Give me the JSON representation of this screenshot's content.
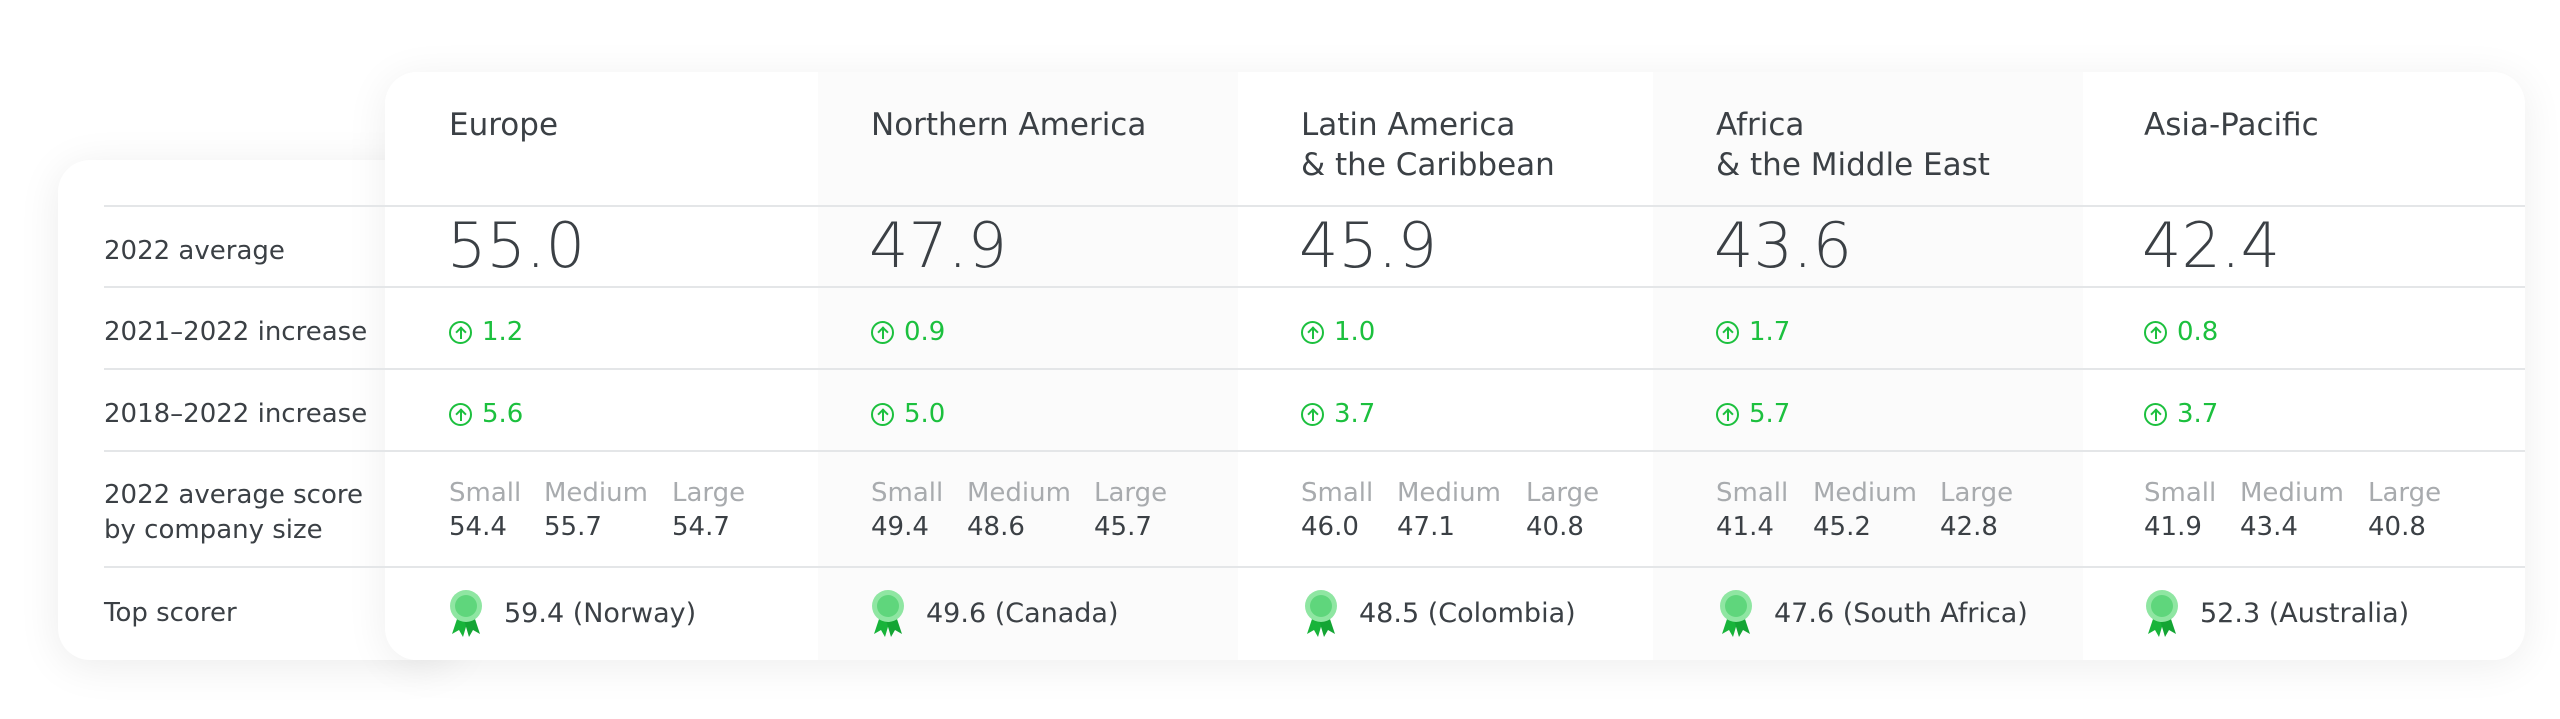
{
  "row_labels": {
    "avg": "2022 average",
    "inc_2021": "2021–2022 increase",
    "inc_2018": "2018–2022 increase",
    "size_line1": "2022 average score",
    "size_line2": "by company size",
    "top": "Top scorer"
  },
  "size_labels": {
    "small": "Small",
    "medium": "Medium",
    "large": "Large"
  },
  "regions": [
    {
      "title": "Europe",
      "avg": "55.0",
      "inc_2021": "1.2",
      "inc_2018": "5.6",
      "small": "54.4",
      "medium": "55.7",
      "large": "54.7",
      "top": "59.4 (Norway)"
    },
    {
      "title": "Northern America",
      "avg": "47.9",
      "inc_2021": "0.9",
      "inc_2018": "5.0",
      "small": "49.4",
      "medium": "48.6",
      "large": "45.7",
      "top": "49.6 (Canada)"
    },
    {
      "title": "Latin America\n& the Caribbean",
      "avg": "45.9",
      "inc_2021": "1.0",
      "inc_2018": "3.7",
      "small": "46.0",
      "medium": "47.1",
      "large": "40.8",
      "top": "48.5 (Colombia)"
    },
    {
      "title": "Africa\n& the Middle East",
      "avg": "43.6",
      "inc_2021": "1.7",
      "inc_2018": "5.7",
      "small": "41.4",
      "medium": "45.2",
      "large": "42.8",
      "top": "47.6 (South Africa)"
    },
    {
      "title": "Asia-Pacific",
      "avg": "42.4",
      "inc_2021": "0.8",
      "inc_2018": "3.7",
      "small": "41.9",
      "medium": "43.4",
      "large": "40.8",
      "top": "52.3 (Australia)"
    }
  ],
  "colors": {
    "accent_green": "#1cc03e",
    "text": "#3b4045",
    "muted": "#a8abae",
    "divider": "#e4e6e8"
  },
  "icons": {
    "increase": "arrow-up-circle-icon",
    "top_scorer": "award-ribbon-icon"
  }
}
